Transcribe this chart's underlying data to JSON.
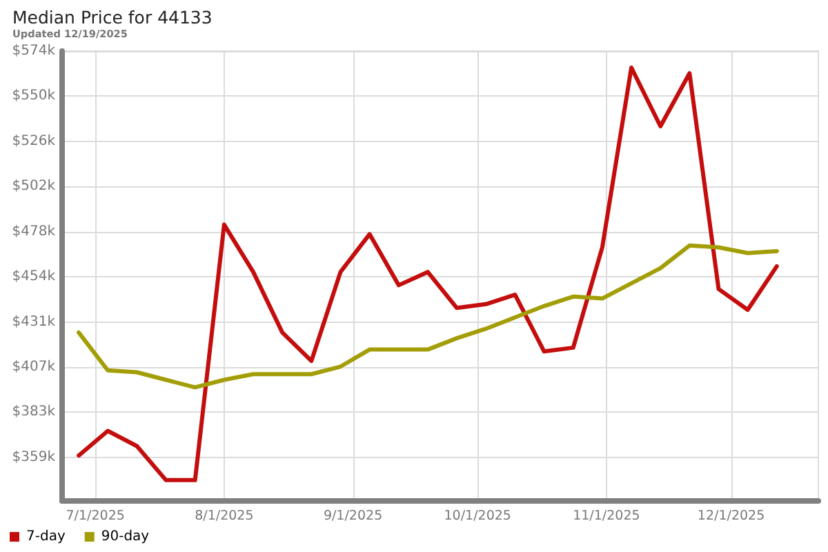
{
  "chart_data": {
    "type": "line",
    "title": "Median Price for 44133",
    "subtitle": "Updated 12/19/2025",
    "x": [
      "2025-06-27",
      "2025-07-04",
      "2025-07-11",
      "2025-07-18",
      "2025-07-25",
      "2025-08-01",
      "2025-08-08",
      "2025-08-15",
      "2025-08-22",
      "2025-08-29",
      "2025-09-05",
      "2025-09-12",
      "2025-09-19",
      "2025-09-26",
      "2025-10-03",
      "2025-10-10",
      "2025-10-17",
      "2025-10-24",
      "2025-10-31",
      "2025-11-07",
      "2025-11-14",
      "2025-11-21",
      "2025-11-28",
      "2025-12-05",
      "2025-12-12"
    ],
    "series": [
      {
        "name": "7-day",
        "color": "#c40d0d",
        "values": [
          360,
          373,
          365,
          347,
          347,
          482,
          457,
          425,
          410,
          457,
          477,
          450,
          457,
          438,
          440,
          445,
          415,
          417,
          470,
          565,
          534,
          562,
          448,
          437,
          460
        ]
      },
      {
        "name": "90-day",
        "color": "#a39e08",
        "values": [
          425,
          405,
          404,
          400,
          396,
          400,
          403,
          403,
          403,
          407,
          416,
          416,
          416,
          422,
          427,
          433,
          439,
          444,
          443,
          451,
          459,
          471,
          470,
          467,
          468
        ]
      }
    ],
    "xlim": [
      "2025-06-23",
      "2025-12-22"
    ],
    "xticks": [
      {
        "value": "2025-07-01",
        "label": "7/1/2025"
      },
      {
        "value": "2025-08-01",
        "label": "8/1/2025"
      },
      {
        "value": "2025-09-01",
        "label": "9/1/2025"
      },
      {
        "value": "2025-10-01",
        "label": "10/1/2025"
      },
      {
        "value": "2025-11-01",
        "label": "11/1/2025"
      },
      {
        "value": "2025-12-01",
        "label": "12/1/2025"
      }
    ],
    "ylim": [
      336,
      573.74
    ],
    "yticks": [
      {
        "value": 359,
        "label": "$359k"
      },
      {
        "value": 382.86,
        "label": "$383k"
      },
      {
        "value": 406.72,
        "label": "$407k"
      },
      {
        "value": 430.58,
        "label": "$431k"
      },
      {
        "value": 454.44,
        "label": "$454k"
      },
      {
        "value": 478.3,
        "label": "$478k"
      },
      {
        "value": 502.16,
        "label": "$502k"
      },
      {
        "value": 526.02,
        "label": "$526k"
      },
      {
        "value": 549.88,
        "label": "$550k"
      },
      {
        "value": 573.74,
        "label": "$574k"
      }
    ],
    "grid": true,
    "legend": "bottom left",
    "marker": "none",
    "line_style": "solid"
  }
}
